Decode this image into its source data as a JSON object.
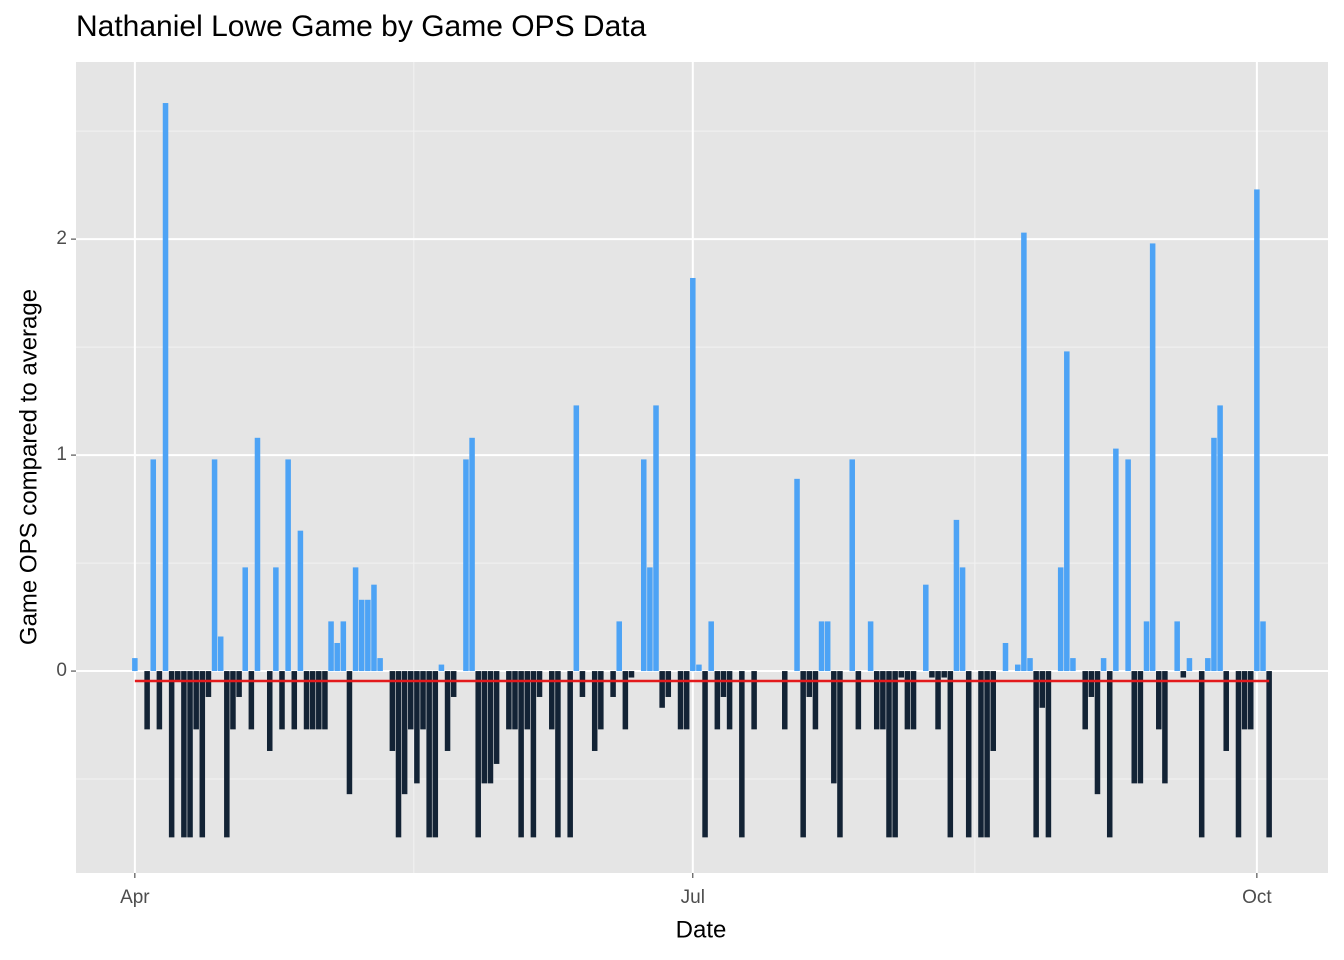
{
  "chart_data": {
    "type": "bar",
    "title": "Nathaniel Lowe Game by Game OPS Data",
    "x_label": "Date",
    "y_label": "Game OPS compared to average",
    "x": [
      0,
      2,
      3,
      4,
      5,
      6,
      7,
      8,
      9,
      10,
      11,
      12,
      13,
      14,
      15,
      16,
      17,
      18,
      19,
      20,
      22,
      23,
      24,
      25,
      26,
      27,
      28,
      29,
      30,
      31,
      32,
      33,
      34,
      35,
      36,
      37,
      38,
      39,
      40,
      42,
      43,
      44,
      45,
      46,
      47,
      48,
      49,
      50,
      51,
      52,
      54,
      55,
      56,
      57,
      58,
      59,
      61,
      62,
      63,
      64,
      65,
      66,
      68,
      69,
      71,
      72,
      73,
      75,
      76,
      78,
      79,
      80,
      81,
      83,
      84,
      85,
      86,
      87,
      89,
      90,
      91,
      92,
      93,
      94,
      95,
      96,
      97,
      99,
      101,
      106,
      108,
      109,
      110,
      111,
      112,
      113,
      114,
      115,
      117,
      118,
      120,
      121,
      122,
      123,
      124,
      125,
      126,
      127,
      129,
      130,
      131,
      132,
      133,
      134,
      135,
      136,
      138,
      139,
      140,
      142,
      144,
      145,
      146,
      147,
      148,
      149,
      151,
      152,
      153,
      155,
      156,
      157,
      158,
      159,
      160,
      162,
      163,
      164,
      165,
      166,
      167,
      168,
      170,
      171,
      172,
      174,
      175,
      176,
      177,
      178,
      180,
      181,
      182,
      183,
      184,
      185
    ],
    "values": [
      0.06,
      -0.27,
      0.98,
      -0.27,
      2.63,
      -0.77,
      -0.05,
      -0.77,
      -0.77,
      -0.27,
      -0.77,
      -0.12,
      0.98,
      0.16,
      -0.77,
      -0.27,
      -0.12,
      0.48,
      -0.27,
      1.08,
      -0.37,
      0.48,
      -0.27,
      0.98,
      -0.27,
      0.65,
      -0.27,
      -0.27,
      -0.27,
      -0.27,
      0.23,
      0.13,
      0.23,
      -0.57,
      0.48,
      0.33,
      0.33,
      0.4,
      0.06,
      -0.37,
      -0.77,
      -0.57,
      -0.27,
      -0.52,
      -0.27,
      -0.77,
      -0.77,
      0.03,
      -0.37,
      -0.12,
      0.98,
      1.08,
      -0.77,
      -0.52,
      -0.52,
      -0.43,
      -0.27,
      -0.27,
      -0.77,
      -0.27,
      -0.77,
      -0.12,
      -0.27,
      -0.77,
      -0.77,
      1.23,
      -0.12,
      -0.37,
      -0.27,
      -0.12,
      0.23,
      -0.27,
      -0.03,
      0.98,
      0.48,
      1.23,
      -0.17,
      -0.12,
      -0.27,
      -0.27,
      1.82,
      0.03,
      -0.77,
      0.23,
      -0.27,
      -0.12,
      -0.27,
      -0.77,
      -0.27,
      -0.27,
      0.89,
      -0.77,
      -0.12,
      -0.27,
      0.23,
      0.23,
      -0.52,
      -0.77,
      0.98,
      -0.27,
      0.23,
      -0.27,
      -0.27,
      -0.77,
      -0.77,
      -0.03,
      -0.27,
      -0.27,
      0.4,
      -0.03,
      -0.27,
      -0.03,
      -0.77,
      0.7,
      0.48,
      -0.77,
      -0.77,
      -0.77,
      -0.37,
      0.13,
      0.03,
      2.03,
      0.06,
      -0.77,
      -0.17,
      -0.77,
      0.48,
      1.48,
      0.06,
      -0.27,
      -0.12,
      -0.57,
      0.06,
      -0.77,
      1.03,
      0.98,
      -0.52,
      -0.52,
      0.23,
      1.98,
      -0.27,
      -0.52,
      0.23,
      -0.03,
      0.06,
      -0.77,
      0.06,
      1.08,
      1.23,
      -0.37,
      -0.77,
      -0.27,
      -0.27,
      2.23,
      0.23,
      -0.77
    ],
    "colors": {
      "above": "#4da3f5",
      "below": "#132335"
    },
    "reference_line": {
      "value": -0.046,
      "color": "#e31a1c"
    },
    "xlim": [
      -9.6,
      194.6
    ],
    "xticks": [
      {
        "value": 0,
        "label": "Apr"
      },
      {
        "value": 91,
        "label": "Jul"
      },
      {
        "value": 183,
        "label": "Oct"
      }
    ],
    "ylim": [
      -0.935,
      2.82
    ],
    "yticks": [
      0,
      1,
      2
    ],
    "grid": true
  }
}
